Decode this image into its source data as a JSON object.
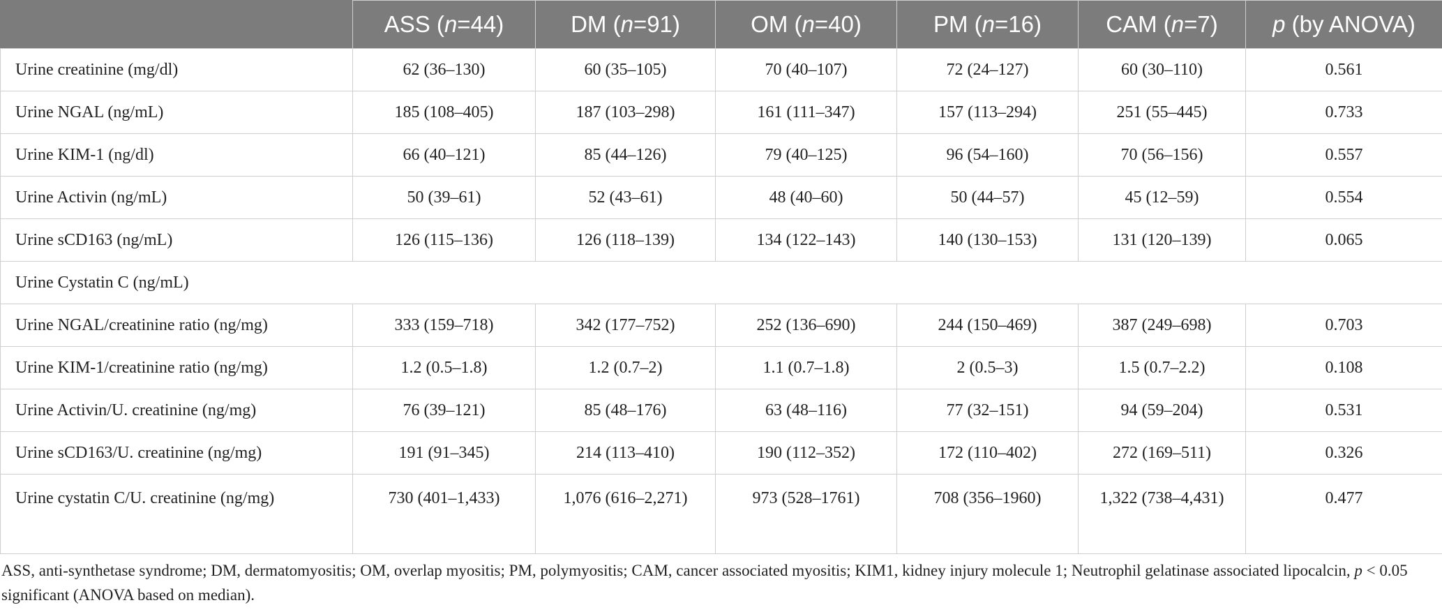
{
  "table": {
    "header": {
      "blank": "",
      "columns": [
        {
          "name": "ASS",
          "n_label": "n",
          "n_value": "=44"
        },
        {
          "name": "DM",
          "n_label": "n",
          "n_value": "=91"
        },
        {
          "name": "OM",
          "n_label": "n",
          "n_value": "=40"
        },
        {
          "name": "PM",
          "n_label": "n",
          "n_value": "=16"
        },
        {
          "name": "CAM",
          "n_label": "n",
          "n_value": "=7"
        }
      ],
      "p_label": "p",
      "p_suffix": " (by ANOVA)"
    },
    "rows": [
      {
        "label": "Urine creatinine (mg/dl)",
        "values": [
          "62 (36–130)",
          "60 (35–105)",
          "70 (40–107)",
          "72 (24–127)",
          "60 (30–110)"
        ],
        "p": "0.561"
      },
      {
        "label": "Urine NGAL (ng/mL)",
        "values": [
          "185 (108–405)",
          "187 (103–298)",
          "161 (111–347)",
          "157 (113–294)",
          "251 (55–445)"
        ],
        "p": "0.733"
      },
      {
        "label": "Urine KIM-1 (ng/dl)",
        "values": [
          "66 (40–121)",
          "85 (44–126)",
          "79 (40–125)",
          "96 (54–160)",
          "70 (56–156)"
        ],
        "p": "0.557"
      },
      {
        "label": "Urine Activin (ng/mL)",
        "values": [
          "50 (39–61)",
          "52 (43–61)",
          "48 (40–60)",
          "50 (44–57)",
          "45 (12–59)"
        ],
        "p": "0.554"
      },
      {
        "label": "Urine sCD163 (ng/mL)",
        "values": [
          "126 (115–136)",
          "126 (118–139)",
          "134 (122–143)",
          "140 (130–153)",
          "131 (120–139)"
        ],
        "p": "0.065"
      },
      {
        "label": "Urine Cystatin C (ng/mL)",
        "section": true
      },
      {
        "label": "Urine NGAL/creatinine ratio (ng/mg)",
        "values": [
          "333 (159–718)",
          "342 (177–752)",
          "252 (136–690)",
          "244 (150–469)",
          "387 (249–698)"
        ],
        "p": "0.703"
      },
      {
        "label": "Urine KIM-1/creatinine ratio (ng/mg)",
        "values": [
          "1.2 (0.5–1.8)",
          "1.2 (0.7–2)",
          "1.1 (0.7–1.8)",
          "2 (0.5–3)",
          "1.5 (0.7–2.2)"
        ],
        "p": "0.108"
      },
      {
        "label": "Urine Activin/U. creatinine (ng/mg)",
        "values": [
          "76 (39–121)",
          "85 (48–176)",
          "63 (48–116)",
          "77 (32–151)",
          "94 (59–204)"
        ],
        "p": "0.531"
      },
      {
        "label": "Urine sCD163/U. creatinine (ng/mg)",
        "values": [
          "191 (91–345)",
          "214 (113–410)",
          "190 (112–352)",
          "172 (110–402)",
          "272 (169–511)"
        ],
        "p": "0.326"
      },
      {
        "label": "Urine cystatin C/U. creatinine (ng/mg)",
        "values": [
          "730 (401–1,433)",
          "1,076 (616–2,271)",
          "973 (528–1761)",
          "708 (356–1960)",
          "1,322 (738–4,431)"
        ],
        "p": "0.477",
        "tall": true
      }
    ]
  },
  "footnote": {
    "part1": "ASS, anti-synthetase syndrome; DM, dermatomyositis; OM, overlap myositis; PM, polymyositis; CAM, cancer associated myositis; KIM1, kidney injury molecule 1; Neutrophil gelatinase associated lipocalcin, ",
    "p_italic": "p",
    "part2": " < 0.05 significant (ANOVA based on median)."
  }
}
